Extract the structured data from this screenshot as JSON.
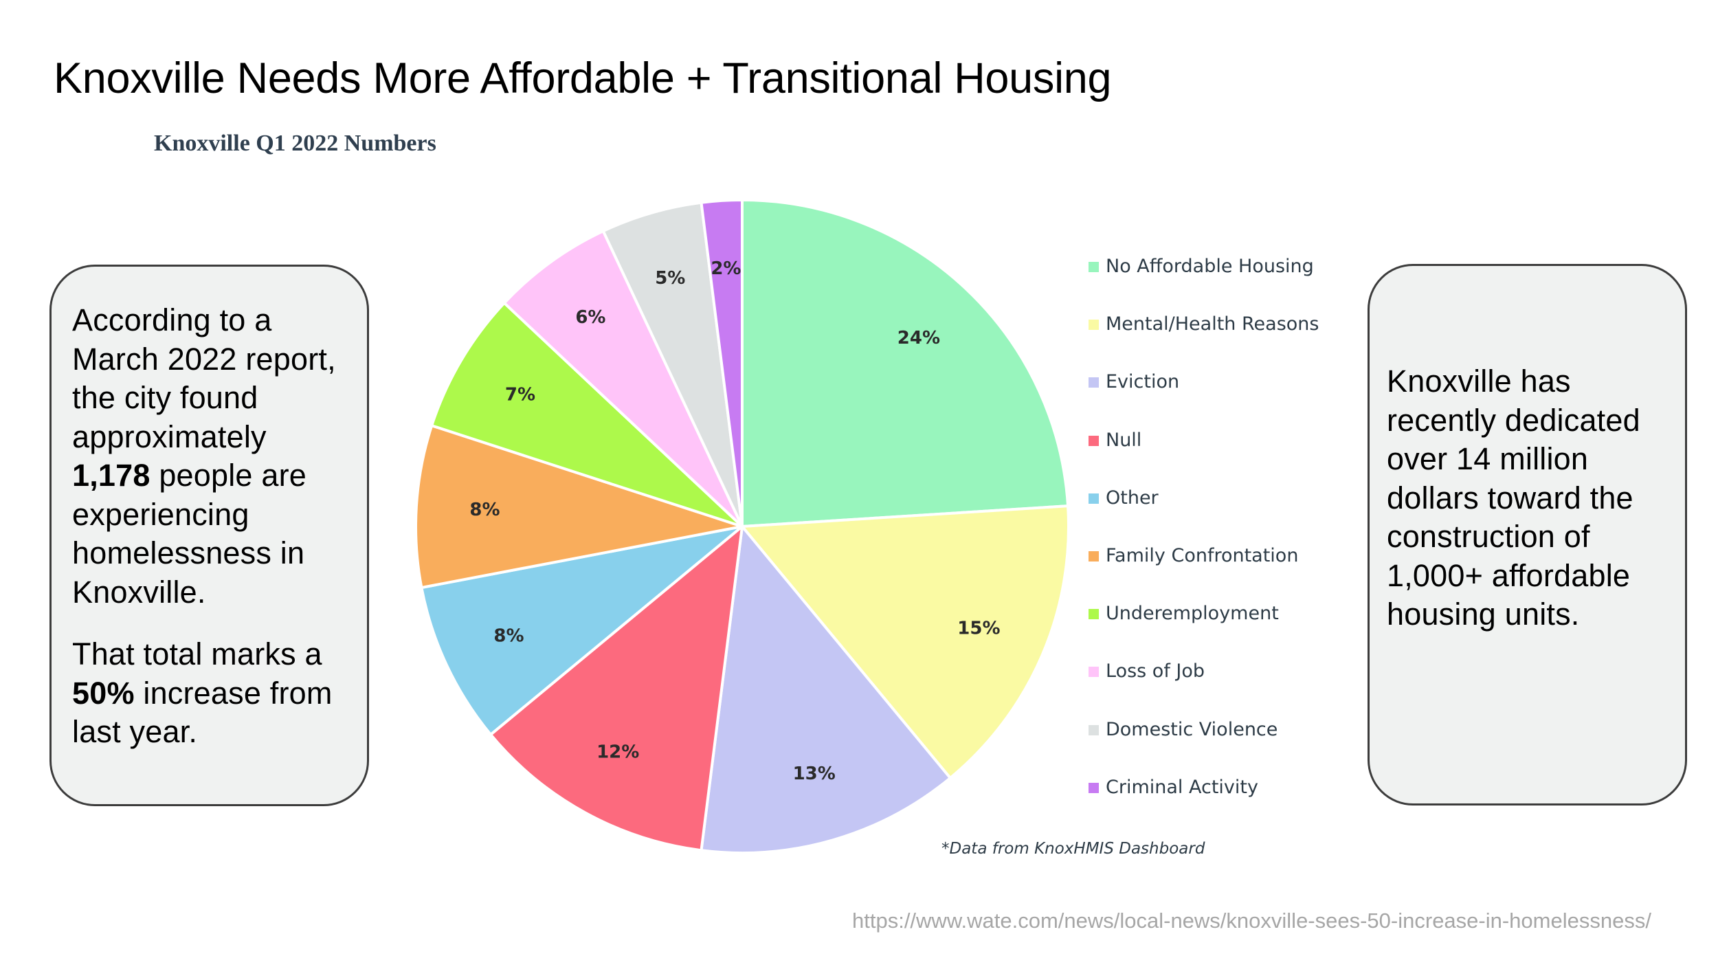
{
  "slide": {
    "title": "Knoxville Needs More Affordable + Transitional Housing",
    "source_url": "https://www.wate.com/news/local-news/knoxville-sees-50-increase-in-homelessness/"
  },
  "left_callout": {
    "p1_before": "According to a March 2022 report, the city found approximately ",
    "p1_bold": "1,178",
    "p1_after": " people are experiencing homelessness in Knoxville.",
    "p2_before": "That total marks a ",
    "p2_bold": "50%",
    "p2_after": " increase from last year."
  },
  "right_callout": {
    "text": "Knoxville has recently dedicated over 14 million dollars toward the construction of 1,000+ affordable housing units."
  },
  "chart_data": {
    "type": "pie",
    "title": "Knoxville Q1 2022 Numbers",
    "note": "*Data from KnoxHMIS Dashboard",
    "legend_position": "right",
    "start_angle_deg": 0,
    "direction": "clockwise",
    "slices": [
      {
        "label": "No Affordable Housing",
        "value": 24,
        "display": "24%",
        "color": "#98f5bd"
      },
      {
        "label": "Mental/Health Reasons",
        "value": 15,
        "display": "15%",
        "color": "#fafaa3"
      },
      {
        "label": "Eviction",
        "value": 13,
        "display": "13%",
        "color": "#c4c6f4"
      },
      {
        "label": "Null",
        "value": 12,
        "display": "12%",
        "color": "#fc6a7e"
      },
      {
        "label": "Other",
        "value": 8,
        "display": "8%",
        "color": "#88d0ec"
      },
      {
        "label": "Family Confrontation",
        "value": 8,
        "display": "8%",
        "color": "#f9ad5c"
      },
      {
        "label": "Underemployment",
        "value": 7,
        "display": "7%",
        "color": "#adf94b"
      },
      {
        "label": "Loss of Job",
        "value": 6,
        "display": "6%",
        "color": "#ffc4f9"
      },
      {
        "label": "Domestic Violence",
        "value": 5,
        "display": "5%",
        "color": "#dde1e1"
      },
      {
        "label": "Criminal Activity",
        "value": 2,
        "display": "2%",
        "color": "#c77bf2"
      }
    ]
  }
}
